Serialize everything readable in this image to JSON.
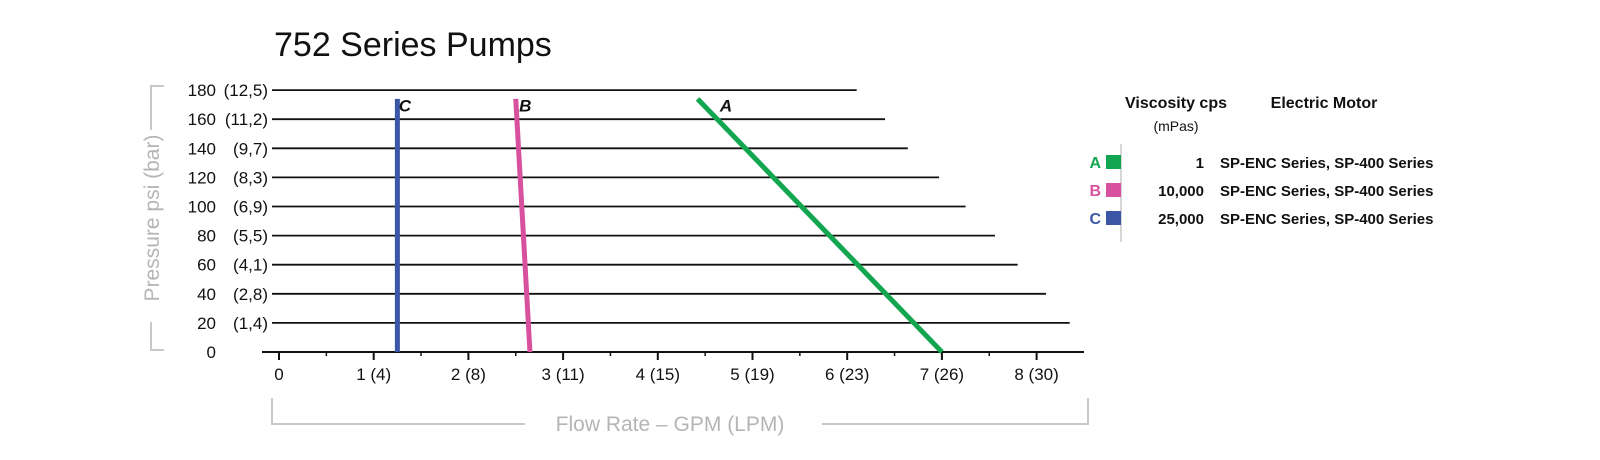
{
  "colors": {
    "background": "#ffffff",
    "grid": "#111111",
    "axis": "#111111",
    "bracket": "#c8c8c8",
    "axis_title": "#b5b5b5"
  },
  "chart_data": {
    "type": "line",
    "title": "752 Series Pumps",
    "xlabel": "Flow Rate – GPM (LPM)",
    "ylabel": "Pressure psi (bar)",
    "xlim": [
      0,
      8.5
    ],
    "ylim": [
      0,
      180
    ],
    "x_ticks": [
      {
        "value": 0,
        "label": "0"
      },
      {
        "value": 1,
        "label": "1 (4)"
      },
      {
        "value": 2,
        "label": "2 (8)"
      },
      {
        "value": 3,
        "label": "3 (11)"
      },
      {
        "value": 4,
        "label": "4 (15)"
      },
      {
        "value": 5,
        "label": "5 (19)"
      },
      {
        "value": 6,
        "label": "6 (23)"
      },
      {
        "value": 7,
        "label": "7 (26)"
      },
      {
        "value": 8,
        "label": "8 (30)"
      }
    ],
    "y_ticks": [
      {
        "value": 0,
        "psi": "0",
        "bar": ""
      },
      {
        "value": 20,
        "psi": "20",
        "bar": "(1,4)"
      },
      {
        "value": 40,
        "psi": "40",
        "bar": "(2,8)"
      },
      {
        "value": 60,
        "psi": "60",
        "bar": "(4,1)"
      },
      {
        "value": 80,
        "psi": "80",
        "bar": "(5,5)"
      },
      {
        "value": 100,
        "psi": "100",
        "bar": "(6,9)"
      },
      {
        "value": 120,
        "psi": "120",
        "bar": "(8,3)"
      },
      {
        "value": 140,
        "psi": "140",
        "bar": "(9,7)"
      },
      {
        "value": 160,
        "psi": "160",
        "bar": "(11,2)"
      },
      {
        "value": 180,
        "psi": "180",
        "bar": "(12,5)"
      }
    ],
    "gridlines": [
      {
        "y": 20,
        "x_end": 8.35
      },
      {
        "y": 40,
        "x_end": 8.1
      },
      {
        "y": 60,
        "x_end": 7.8
      },
      {
        "y": 80,
        "x_end": 7.56
      },
      {
        "y": 100,
        "x_end": 7.25
      },
      {
        "y": 120,
        "x_end": 6.97
      },
      {
        "y": 140,
        "x_end": 6.64
      },
      {
        "y": 160,
        "x_end": 6.4
      },
      {
        "y": 180,
        "x_end": 6.1
      }
    ],
    "grid": true,
    "series": [
      {
        "key": "A",
        "color": "#13a650",
        "x": [
          4.42,
          7.0
        ],
        "y": [
          174,
          0
        ]
      },
      {
        "key": "B",
        "color": "#d7519f",
        "x": [
          2.5,
          2.65
        ],
        "y": [
          174,
          0
        ]
      },
      {
        "key": "C",
        "color": "#3a56a5",
        "x": [
          1.25,
          1.25
        ],
        "y": [
          174,
          0
        ]
      }
    ],
    "curve_labels": [
      {
        "text": "A",
        "x": 4.72,
        "y": 170
      },
      {
        "text": "B",
        "x": 2.6,
        "y": 170
      },
      {
        "text": "C",
        "x": 1.33,
        "y": 170
      }
    ],
    "legend": {
      "position": "right",
      "header_viscosity": "Viscosity cps",
      "header_units": "(mPas)",
      "header_motor": "Electric Motor",
      "rows": [
        {
          "key": "A",
          "color": "#13a650",
          "viscosity": "1",
          "motor": "SP-ENC Series, SP-400 Series"
        },
        {
          "key": "B",
          "color": "#d7519f",
          "viscosity": "10,000",
          "motor": "SP-ENC Series, SP-400 Series"
        },
        {
          "key": "C",
          "color": "#3a56a5",
          "viscosity": "25,000",
          "motor": "SP-ENC Series, SP-400 Series"
        }
      ]
    }
  }
}
